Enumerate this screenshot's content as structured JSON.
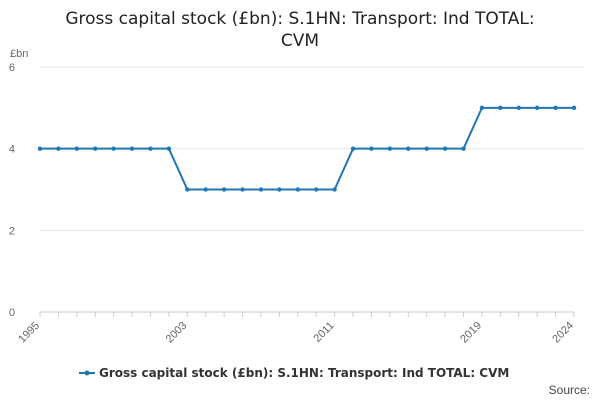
{
  "chart_data": {
    "type": "line",
    "title_lines": [
      "Gross capital stock (£bn): S.1HN: Transport: Ind TOTAL:",
      "CVM"
    ],
    "unit_label": "£bn",
    "x": [
      1995,
      1996,
      1997,
      1998,
      1999,
      2000,
      2001,
      2002,
      2003,
      2004,
      2005,
      2006,
      2007,
      2008,
      2009,
      2010,
      2011,
      2012,
      2013,
      2014,
      2015,
      2016,
      2017,
      2018,
      2019,
      2020,
      2021,
      2022,
      2023,
      2024
    ],
    "x_tick_labels": [
      "1995",
      "2003",
      "2011",
      "2019",
      "2024"
    ],
    "ylim": [
      0,
      6
    ],
    "y_ticks": [
      "0",
      "2",
      "4",
      "6"
    ],
    "grid": true,
    "legend_position": "bottom",
    "series": [
      {
        "name": "Gross capital stock (£bn): S.1HN: Transport: Ind TOTAL: CVM",
        "color": "#1f77b4",
        "values": [
          4,
          4,
          4,
          4,
          4,
          4,
          4,
          4,
          3,
          3,
          3,
          3,
          3,
          3,
          3,
          3,
          3,
          4,
          4,
          4,
          4,
          4,
          4,
          4,
          5,
          5,
          5,
          5,
          5,
          5
        ]
      }
    ]
  },
  "footer": {
    "source_label": "Source:"
  }
}
